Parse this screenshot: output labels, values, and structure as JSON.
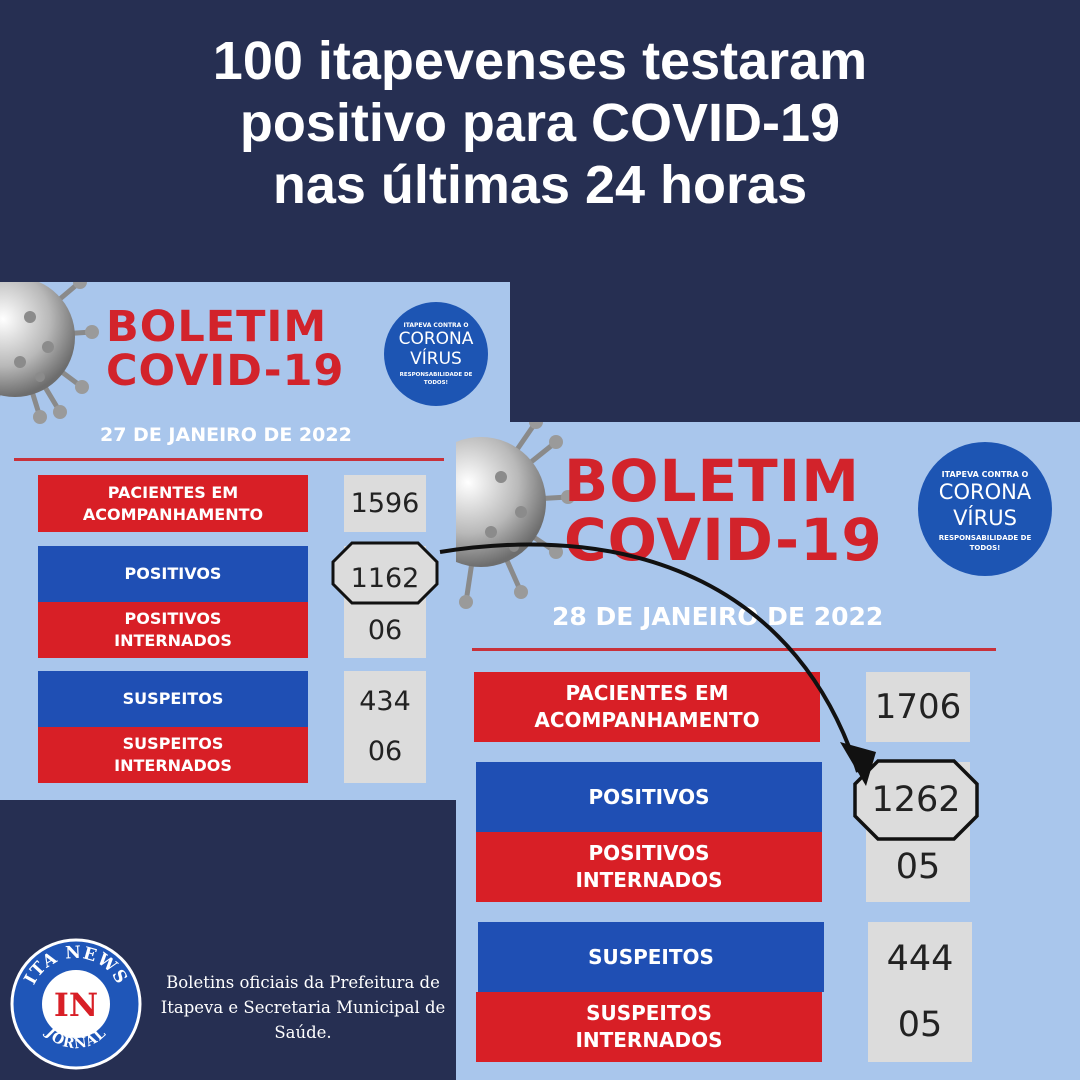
{
  "headline": {
    "line1": "100 itapevenses testaram",
    "line2": "positivo para COVID-19",
    "line3": "nas últimas 24 horas"
  },
  "boletim_anterior": {
    "title_line1": "BOLETIM",
    "title_line2": "COVID-19",
    "date": "27 DE JANEIRO DE 2022",
    "seal": {
      "top": "ITAPEVA CONTRA O",
      "line1": "CORONA",
      "line2": "VÍRUS",
      "bottom": "RESPONSABILIDADE DE TODOS!"
    },
    "rows": {
      "pacientes_label": "PACIENTES EM ACOMPANHAMENTO",
      "pacientes_value": "1596",
      "positivos_label": "POSITIVOS",
      "positivos_value": "1162",
      "positivos_internados_label": "POSITIVOS INTERNADOS",
      "positivos_internados_value": "06",
      "suspeitos_label": "SUSPEITOS",
      "suspeitos_value": "434",
      "suspeitos_internados_label": "SUSPEITOS INTERNADOS",
      "suspeitos_internados_value": "06"
    }
  },
  "boletim_atual": {
    "title_line1": "BOLETIM",
    "title_line2": "COVID-19",
    "date": "28 DE JANEIRO DE 2022",
    "seal": {
      "top": "ITAPEVA CONTRA O",
      "line1": "CORONA",
      "line2": "VÍRUS",
      "bottom": "RESPONSABILIDADE DE TODOS!"
    },
    "rows": {
      "pacientes_label": "PACIENTES EM ACOMPANHAMENTO",
      "pacientes_value": "1706",
      "positivos_label": "POSITIVOS",
      "positivos_value": "1262",
      "positivos_internados_label": "POSITIVOS INTERNADOS",
      "positivos_internados_value": "05",
      "suspeitos_label": "SUSPEITOS",
      "suspeitos_value": "444",
      "suspeitos_internados_label": "SUSPEITOS INTERNADOS",
      "suspeitos_internados_value": "05"
    }
  },
  "logo": {
    "top": "ITA NEWS",
    "mark": "IN",
    "bottom": "JORNAL"
  },
  "credit": "Boletins oficiais da Prefeitura de Itapeva e Secretaria Municipal de Saúde.",
  "colors": {
    "background": "#262f52",
    "board": "#a9c6ec",
    "red": "#d81f26",
    "blue": "#1f4fb4",
    "seal": "#1d55b3"
  }
}
